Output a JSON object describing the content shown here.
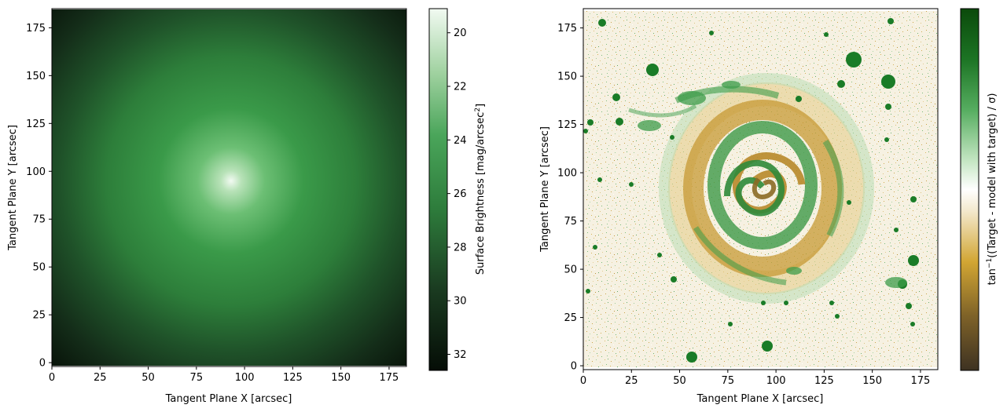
{
  "chart_data": [
    {
      "type": "heatmap",
      "title": "",
      "xlabel": "Tangent Plane X [arcsec]",
      "ylabel": "Tangent Plane Y [arcsec]",
      "xlim": [
        0,
        184
      ],
      "ylim": [
        -2,
        185
      ],
      "xticks": [
        0,
        25,
        50,
        75,
        100,
        125,
        150,
        175
      ],
      "yticks": [
        0,
        25,
        50,
        75,
        100,
        125,
        150,
        175
      ],
      "image": {
        "center": [
          93,
          95
        ],
        "peak_brightness": 19,
        "edge_brightness": 32.5
      },
      "colorbar": {
        "label": "Surface Brightness [mag/arcsec$^2$]",
        "label_main": "Surface Brightness [mag/arcsec",
        "label_sup": "2",
        "label_end": "]",
        "range": [
          32.6,
          19.1
        ],
        "ticks": [
          20,
          22,
          24,
          26,
          28,
          30,
          32
        ],
        "colormap": [
          "#050d06",
          "#1e3d23",
          "#2e7d3c",
          "#4aa55a",
          "#9fd19f",
          "#eef7ee"
        ]
      }
    },
    {
      "type": "heatmap",
      "title": "",
      "xlabel": "Tangent Plane X [arcsec]",
      "ylabel": "Tangent Plane Y [arcsec]",
      "xlim": [
        0,
        184
      ],
      "ylim": [
        -2,
        185
      ],
      "xticks": [
        0,
        25,
        50,
        75,
        100,
        125,
        150,
        175
      ],
      "yticks": [
        0,
        25,
        50,
        75,
        100,
        125,
        150,
        175
      ],
      "image": {
        "description": "residual map, spiral galaxy structure",
        "center": [
          95,
          95
        ]
      },
      "colorbar": {
        "label": "tan$^{-1}$((Target - model with target) / $\\sigma$)",
        "label_pre": "tan",
        "label_sup": "−1",
        "label_post": "((Target - model with target) / σ)",
        "ticks": [],
        "colormap": [
          "#3e3222",
          "#8a6a2a",
          "#d5a935",
          "#f2e6c8",
          "#ffffff",
          "#c6e6c4",
          "#4ea55a",
          "#0e5c14",
          "#0a3f0a"
        ]
      }
    }
  ]
}
